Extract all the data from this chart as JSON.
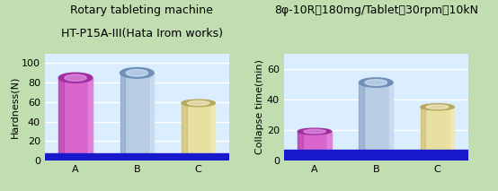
{
  "left_title1": "Rotary tableting machine",
  "left_title2": "HT-P15A-III(Hata Irom works)",
  "right_title": "8φ-10R、180mg/Tablet、30rpm、10kN",
  "categories": [
    "A",
    "B",
    "C"
  ],
  "hardness_values": [
    85,
    90,
    59
  ],
  "collapse_values": [
    19,
    51,
    35
  ],
  "bar_colors": [
    "#d966cc",
    "#b8cce4",
    "#e8e0a0"
  ],
  "bar_colors_dark": [
    "#a030a0",
    "#7090b8",
    "#b8a860"
  ],
  "bar_colors_light": [
    "#f0a0f0",
    "#ddeeff",
    "#f8f4d0"
  ],
  "ylabel_left": "Hardness(N)",
  "ylabel_right": "Collapse time(min)",
  "ylim_left": [
    0,
    110
  ],
  "ylim_right": [
    0,
    70
  ],
  "yticks_left": [
    0,
    20,
    40,
    60,
    80,
    100
  ],
  "yticks_right": [
    0,
    20,
    40,
    60
  ],
  "bg_color": "#c0deb0",
  "plot_bg": "#daeeff",
  "bottom_color": "#1818cc",
  "bottom_bar_height": 7,
  "title_fontsize": 9.0,
  "axis_fontsize": 8,
  "tick_fontsize": 8
}
